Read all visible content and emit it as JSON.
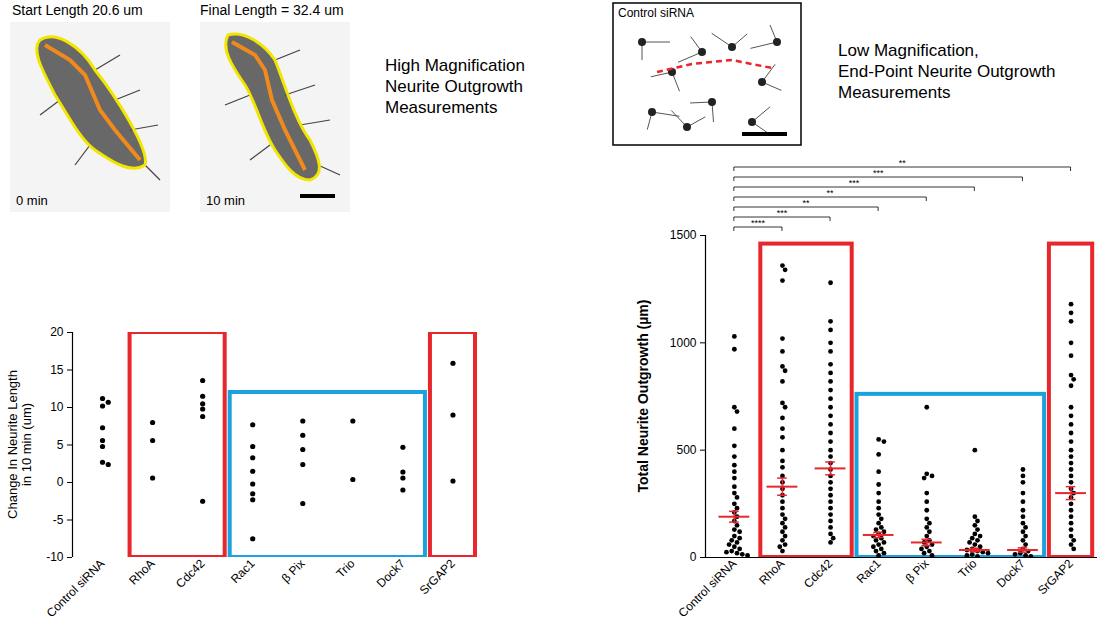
{
  "chart_data": [
    {
      "type": "scatter",
      "annotations": [
        "Start Length 20.6 um",
        "Final Length = 32.4 um",
        "0 min",
        "10 min",
        "High Magnification Neurite Outgrowth Measurements"
      ],
      "y_label": "Change In Neurite Length in 10 min (um)",
      "categories": [
        "Control siRNA",
        "RhoA",
        "Cdc42",
        "Rac1",
        "β Pix",
        "Trio",
        "Dock7",
        "SrGAP2"
      ],
      "values": [
        [
          11.2,
          10.7,
          10.2,
          7.3,
          5.6,
          4.8,
          2.7,
          2.4
        ],
        [
          8,
          5.6,
          0.6
        ],
        [
          13.6,
          11.5,
          10.5,
          9.8,
          8.8,
          -2.5
        ],
        [
          7.7,
          4.8,
          3.3,
          1.5,
          -0.2,
          -1.5,
          -2.3,
          -7.5
        ],
        [
          8.2,
          6.3,
          4.4,
          2.4,
          -2.8
        ],
        [
          8.2,
          0.4
        ],
        [
          4.7,
          1.4,
          0.6,
          -1
        ],
        [
          15.9,
          9,
          0.2
        ]
      ],
      "color": "#000000",
      "box_groups": [
        {
          "categories": [
            "RhoA",
            "Cdc42"
          ],
          "color": "#e8262b",
          "range": [
            -10,
            20
          ]
        },
        {
          "categories": [
            "Rac1",
            "β Pix",
            "Trio",
            "Dock7"
          ],
          "color": "#1ba1dc",
          "range": [
            -10,
            12
          ]
        },
        {
          "categories": [
            "SrGAP2"
          ],
          "color": "#e8262b",
          "range": [
            -10,
            20
          ]
        }
      ],
      "ylim": [
        -10,
        20
      ],
      "yticks": [
        -10,
        -5,
        0,
        5,
        10,
        15,
        20
      ],
      "grid": false
    },
    {
      "type": "scatter",
      "annotations": [
        "Control siRNA",
        "Low Magnification, End-Point Neurite Outgrowth Measurements"
      ],
      "y_label": "Total Neurite Outgrowth (µm)",
      "categories": [
        "Control siRNA",
        "RhoA",
        "Cdc42",
        "Rac1",
        "β Pix",
        "Trio",
        "Dock7",
        "SrGAP2"
      ],
      "values": [
        [
          1030,
          970,
          700,
          680,
          600,
          520,
          470,
          430,
          400,
          370,
          330,
          300,
          280,
          250,
          230,
          210,
          190,
          170,
          150,
          130,
          120,
          100,
          90,
          80,
          70,
          60,
          50,
          40,
          30,
          25,
          20,
          15,
          10
        ],
        [
          1360,
          1340,
          1290,
          1020,
          960,
          890,
          870,
          820,
          720,
          700,
          650,
          600,
          560,
          500,
          450,
          420,
          380,
          350,
          320,
          290,
          260,
          230,
          200,
          180,
          160,
          140,
          120,
          100,
          80,
          60,
          50,
          30
        ],
        [
          1280,
          1100,
          1060,
          1000,
          960,
          900,
          860,
          820,
          780,
          740,
          700,
          660,
          620,
          580,
          540,
          500,
          470,
          440,
          410,
          380,
          350,
          320,
          290,
          260,
          230,
          200,
          170,
          140,
          110,
          90,
          70
        ],
        [
          550,
          540,
          480,
          400,
          340,
          300,
          260,
          230,
          200,
          180,
          160,
          140,
          130,
          120,
          110,
          100,
          90,
          80,
          70,
          60,
          50,
          40,
          30,
          20,
          10
        ],
        [
          700,
          390,
          380,
          370,
          300,
          260,
          220,
          180,
          160,
          140,
          120,
          100,
          80,
          70,
          60,
          50,
          40,
          30,
          20,
          10
        ],
        [
          500,
          190,
          170,
          150,
          130,
          110,
          100,
          90,
          80,
          70,
          60,
          50,
          40,
          35,
          30,
          25,
          20,
          15,
          10,
          5
        ],
        [
          410,
          380,
          350,
          300,
          260,
          220,
          190,
          160,
          140,
          120,
          100,
          80,
          60,
          40,
          30,
          20,
          15,
          10,
          5
        ],
        [
          1180,
          1140,
          1100,
          1000,
          940,
          850,
          830,
          800,
          700,
          660,
          620,
          580,
          540,
          500,
          470,
          440,
          410,
          380,
          350,
          320,
          300,
          280,
          250,
          220,
          190,
          160,
          130,
          100,
          80,
          60,
          40
        ]
      ],
      "mean": [
        190,
        330,
        415,
        105,
        70,
        35,
        35,
        300
      ],
      "error": [
        25,
        40,
        30,
        12,
        15,
        8,
        10,
        30
      ],
      "color": "#000000",
      "box_groups": [
        {
          "categories": [
            "RhoA",
            "Cdc42"
          ],
          "color": "#e8262b",
          "range": [
            0,
            1460
          ]
        },
        {
          "categories": [
            "Rac1",
            "β Pix",
            "Trio",
            "Dock7"
          ],
          "color": "#1ba1dc",
          "range": [
            0,
            760
          ]
        },
        {
          "categories": [
            "SrGAP2"
          ],
          "color": "#e8262b",
          "range": [
            0,
            1460
          ]
        }
      ],
      "significance": [
        {
          "from": "Control siRNA",
          "to": "RhoA",
          "label": "****"
        },
        {
          "from": "Control siRNA",
          "to": "Cdc42",
          "label": "***"
        },
        {
          "from": "Control siRNA",
          "to": "Rac1",
          "label": "**"
        },
        {
          "from": "Control siRNA",
          "to": "β Pix",
          "label": "**"
        },
        {
          "from": "Control siRNA",
          "to": "Trio",
          "label": "***"
        },
        {
          "from": "Control siRNA",
          "to": "Dock7",
          "label": "***"
        },
        {
          "from": "Control siRNA",
          "to": "SrGAP2",
          "label": "**"
        }
      ],
      "ylim": [
        0,
        1500
      ],
      "yticks": [
        0,
        500,
        1000,
        1500
      ],
      "grid": false
    }
  ]
}
